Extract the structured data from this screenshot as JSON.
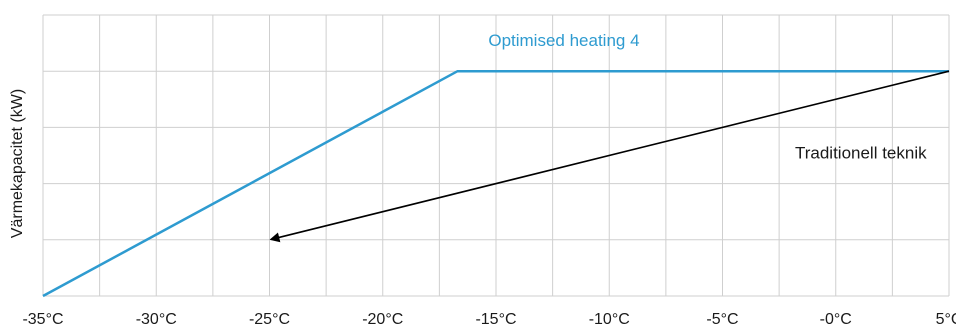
{
  "chart_data": {
    "type": "line",
    "title": "",
    "xlabel": "",
    "ylabel": "Värmekapacitet (kW)",
    "xlim": [
      -35,
      5
    ],
    "ylim": [
      0,
      5
    ],
    "x_ticks": [
      -35,
      -30,
      -25,
      -20,
      -15,
      -10,
      -5,
      0,
      5
    ],
    "x_tick_labels": [
      "-35°C",
      "-30°C",
      "-25°C",
      "-20°C",
      "-15°C",
      "-10°C",
      "-5°C",
      "-0°C",
      "5°C"
    ],
    "x_minor_step": 2.5,
    "y_gridlines": [
      1,
      2,
      3,
      4,
      5
    ],
    "grid": true,
    "series": [
      {
        "name": "Optimised heating 4",
        "color": "#2e9bd0",
        "points": [
          [
            -35,
            0
          ],
          [
            -16.7,
            4
          ],
          [
            5,
            4
          ]
        ]
      },
      {
        "name": "Traditionell teknik",
        "color": "#000000",
        "arrow": true,
        "points": [
          [
            5,
            4
          ],
          [
            -25,
            1
          ]
        ]
      }
    ],
    "annotations": [
      {
        "text": "Optimised heating  4",
        "x": -12,
        "y": 4.45,
        "color": "#2e9bd0"
      },
      {
        "text": "Traditionell teknik",
        "x": -1.8,
        "y": 2.45,
        "color": "#1a1a1a"
      }
    ]
  }
}
